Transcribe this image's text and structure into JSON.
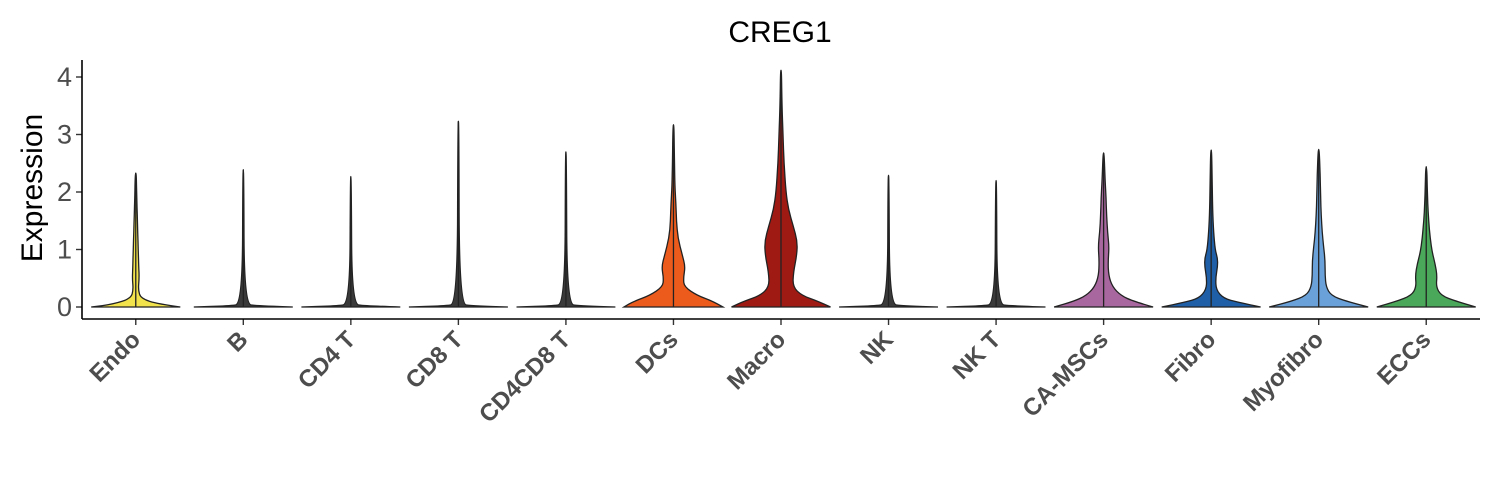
{
  "chart_data": {
    "type": "violin",
    "title": "CREG1",
    "xlabel": "",
    "ylabel": "Expression",
    "ylim": [
      0,
      4
    ],
    "yticks": [
      0,
      1,
      2,
      3,
      4
    ],
    "grid": false,
    "legend": "none",
    "categories": [
      "Endo",
      "B",
      "CD4 T",
      "CD8 T",
      "CD4CD8 T",
      "DCs",
      "Macro",
      "NK",
      "NK T",
      "CA-MSCs",
      "Fibro",
      "Myofibro",
      "ECCs"
    ],
    "groups": [
      {
        "name": "Endo",
        "color": "#f2e34c",
        "max": 2.33,
        "density": [
          [
            0,
            0.9
          ],
          [
            0.05,
            0.45
          ],
          [
            0.15,
            0.1
          ],
          [
            0.3,
            0.05
          ],
          [
            0.5,
            0.07
          ],
          [
            0.7,
            0.06
          ],
          [
            1.0,
            0.05
          ],
          [
            1.3,
            0.04
          ],
          [
            1.6,
            0.03
          ],
          [
            1.9,
            0.02
          ],
          [
            2.33,
            0.01
          ]
        ]
      },
      {
        "name": "B",
        "color": "#3a3a3a",
        "max": 2.39,
        "density": [
          [
            0,
            1.0
          ],
          [
            0.02,
            0.3
          ],
          [
            0.05,
            0.02
          ],
          [
            2.39,
            0.01
          ]
        ]
      },
      {
        "name": "CD4 T",
        "color": "#3a3a3a",
        "max": 2.27,
        "density": [
          [
            0,
            1.0
          ],
          [
            0.02,
            0.3
          ],
          [
            0.05,
            0.02
          ],
          [
            2.27,
            0.01
          ]
        ]
      },
      {
        "name": "CD8 T",
        "color": "#3a3a3a",
        "max": 3.23,
        "density": [
          [
            0,
            1.0
          ],
          [
            0.02,
            0.3
          ],
          [
            0.05,
            0.02
          ],
          [
            3.23,
            0.01
          ]
        ]
      },
      {
        "name": "CD4CD8 T",
        "color": "#3a3a3a",
        "max": 2.7,
        "density": [
          [
            0,
            1.0
          ],
          [
            0.02,
            0.3
          ],
          [
            0.05,
            0.02
          ],
          [
            2.7,
            0.01
          ]
        ]
      },
      {
        "name": "DCs",
        "color": "#ec5a1c",
        "max": 3.17,
        "density": [
          [
            0,
            1.0
          ],
          [
            0.1,
            0.8
          ],
          [
            0.2,
            0.48
          ],
          [
            0.35,
            0.22
          ],
          [
            0.5,
            0.2
          ],
          [
            0.7,
            0.24
          ],
          [
            0.9,
            0.18
          ],
          [
            1.2,
            0.09
          ],
          [
            1.5,
            0.06
          ],
          [
            1.8,
            0.05
          ],
          [
            2.1,
            0.03
          ],
          [
            2.5,
            0.02
          ],
          [
            3.17,
            0.01
          ]
        ]
      },
      {
        "name": "Macro",
        "color": "#a01a14",
        "max": 4.12,
        "density": [
          [
            0,
            1.0
          ],
          [
            0.1,
            0.75
          ],
          [
            0.2,
            0.42
          ],
          [
            0.35,
            0.24
          ],
          [
            0.6,
            0.25
          ],
          [
            0.9,
            0.32
          ],
          [
            1.15,
            0.33
          ],
          [
            1.4,
            0.25
          ],
          [
            1.7,
            0.15
          ],
          [
            2.0,
            0.1
          ],
          [
            2.5,
            0.06
          ],
          [
            3.0,
            0.04
          ],
          [
            3.5,
            0.02
          ],
          [
            4.12,
            0.01
          ]
        ]
      },
      {
        "name": "NK",
        "color": "#3a3a3a",
        "max": 2.29,
        "density": [
          [
            0,
            1.0
          ],
          [
            0.02,
            0.3
          ],
          [
            0.05,
            0.02
          ],
          [
            2.29,
            0.01
          ]
        ]
      },
      {
        "name": "NK T",
        "color": "#3a3a3a",
        "max": 2.2,
        "density": [
          [
            0,
            1.0
          ],
          [
            0.02,
            0.3
          ],
          [
            0.05,
            0.02
          ],
          [
            2.2,
            0.01
          ]
        ]
      },
      {
        "name": "CA-MSCs",
        "color": "#a8679e",
        "max": 2.68,
        "density": [
          [
            0,
            1.0
          ],
          [
            0.1,
            0.6
          ],
          [
            0.2,
            0.35
          ],
          [
            0.35,
            0.18
          ],
          [
            0.55,
            0.1
          ],
          [
            0.8,
            0.09
          ],
          [
            1.05,
            0.11
          ],
          [
            1.3,
            0.08
          ],
          [
            1.6,
            0.06
          ],
          [
            1.9,
            0.05
          ],
          [
            2.2,
            0.03
          ],
          [
            2.68,
            0.01
          ]
        ]
      },
      {
        "name": "Fibro",
        "color": "#1f5fa8",
        "max": 2.73,
        "density": [
          [
            0,
            1.0
          ],
          [
            0.08,
            0.55
          ],
          [
            0.15,
            0.25
          ],
          [
            0.3,
            0.1
          ],
          [
            0.5,
            0.09
          ],
          [
            0.7,
            0.13
          ],
          [
            0.85,
            0.13
          ],
          [
            1.0,
            0.08
          ],
          [
            1.3,
            0.05
          ],
          [
            1.7,
            0.03
          ],
          [
            2.2,
            0.02
          ],
          [
            2.73,
            0.01
          ]
        ]
      },
      {
        "name": "Myofibro",
        "color": "#6aa1d8",
        "max": 2.74,
        "density": [
          [
            0,
            1.0
          ],
          [
            0.1,
            0.55
          ],
          [
            0.2,
            0.25
          ],
          [
            0.35,
            0.15
          ],
          [
            0.55,
            0.13
          ],
          [
            0.8,
            0.13
          ],
          [
            1.05,
            0.1
          ],
          [
            1.3,
            0.07
          ],
          [
            1.6,
            0.05
          ],
          [
            1.9,
            0.04
          ],
          [
            2.3,
            0.03
          ],
          [
            2.74,
            0.01
          ]
        ]
      },
      {
        "name": "ECCs",
        "color": "#4aa85a",
        "max": 2.44,
        "density": [
          [
            0,
            1.0
          ],
          [
            0.1,
            0.6
          ],
          [
            0.2,
            0.3
          ],
          [
            0.35,
            0.2
          ],
          [
            0.55,
            0.22
          ],
          [
            0.75,
            0.18
          ],
          [
            0.95,
            0.12
          ],
          [
            1.2,
            0.08
          ],
          [
            1.5,
            0.05
          ],
          [
            1.8,
            0.03
          ],
          [
            2.1,
            0.02
          ],
          [
            2.44,
            0.01
          ]
        ]
      }
    ]
  }
}
